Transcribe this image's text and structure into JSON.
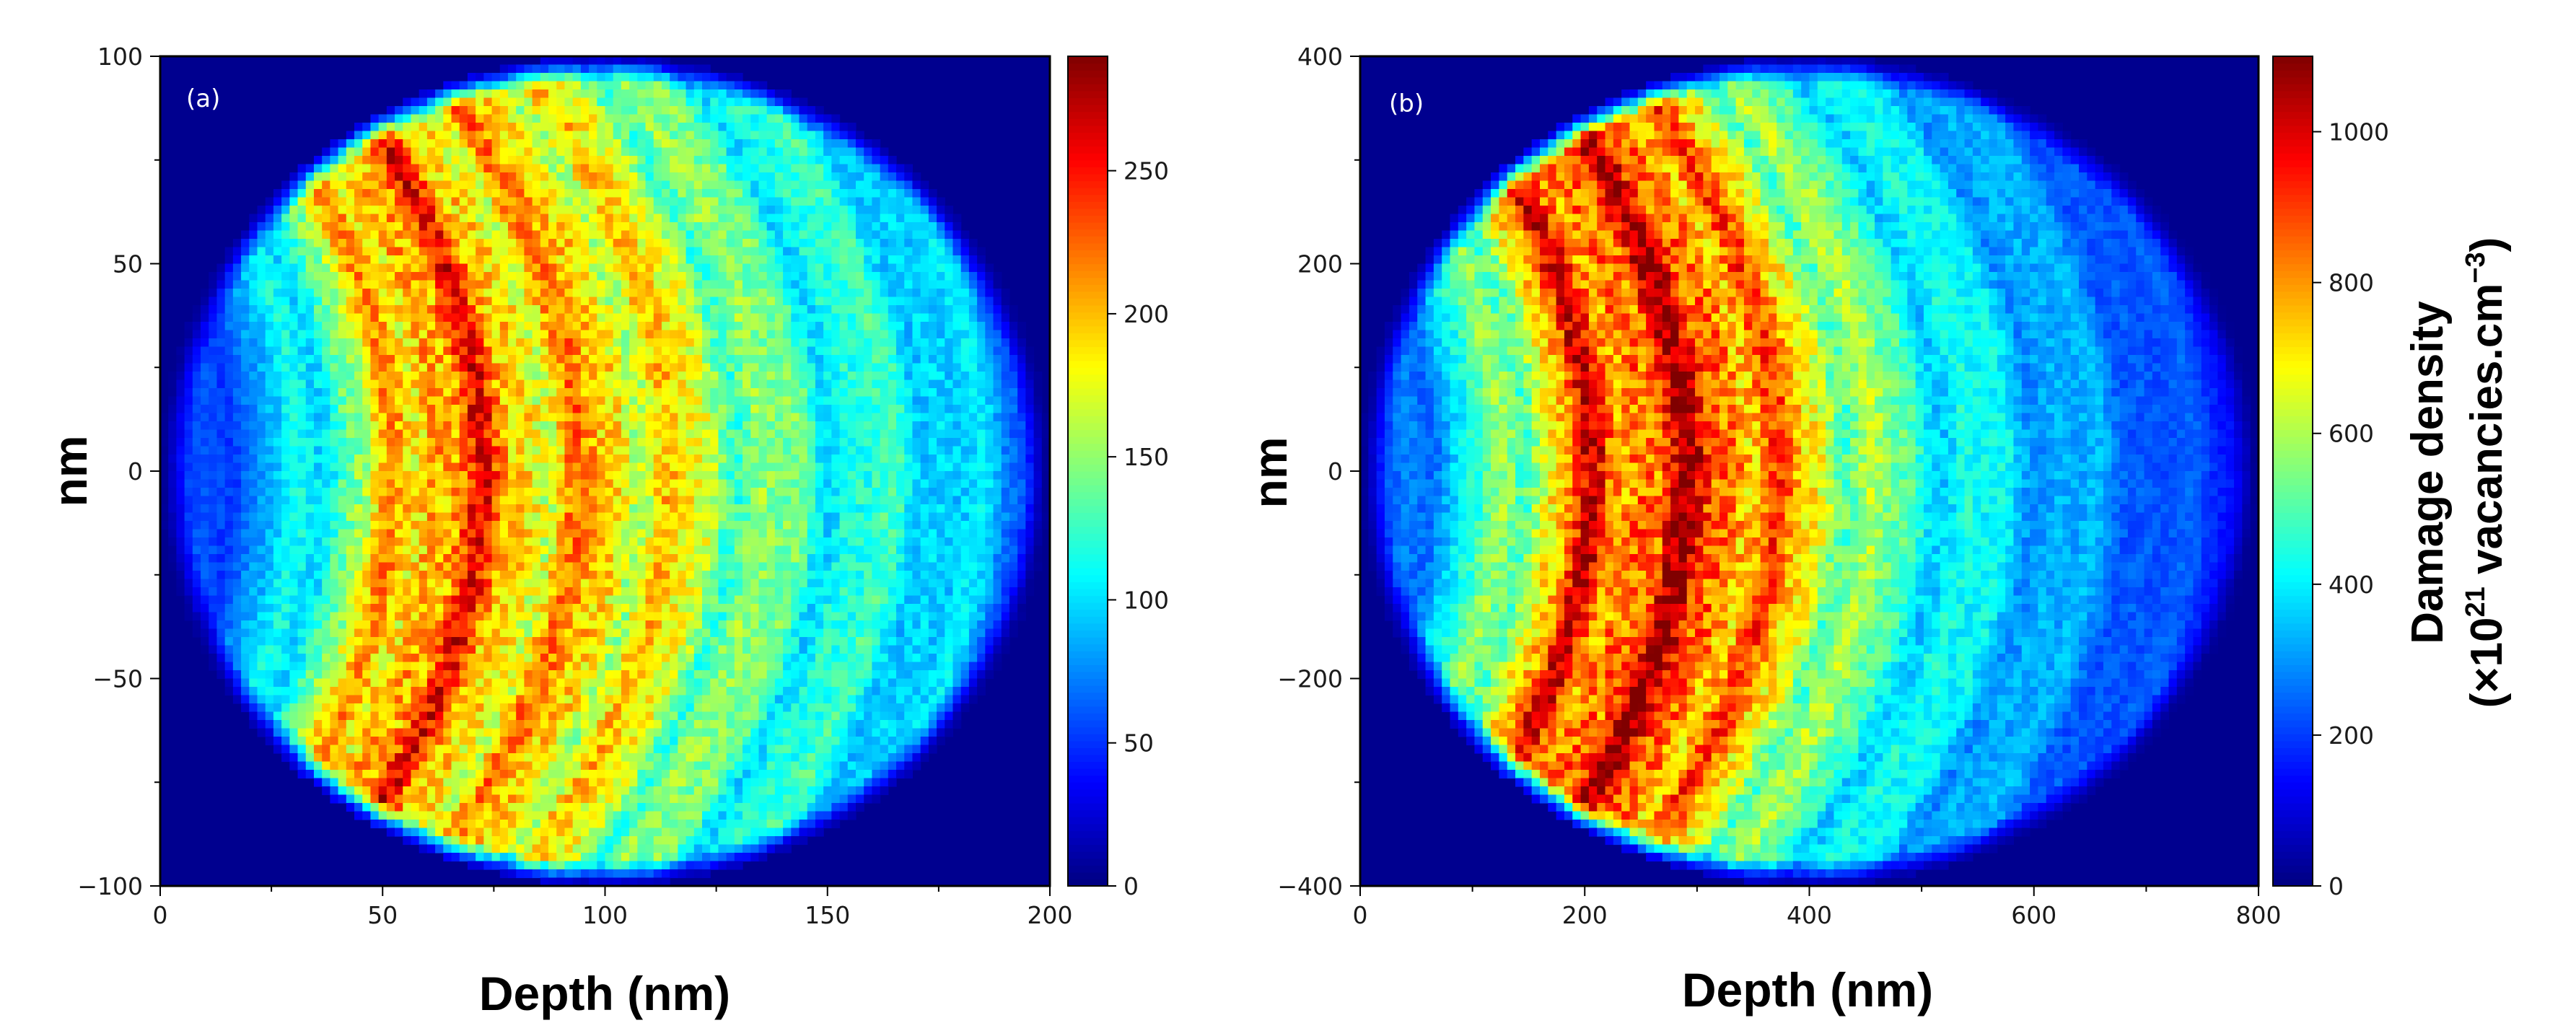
{
  "chart_data": [
    {
      "type": "heatmap",
      "panel_label": "(a)",
      "xlabel": "Depth (nm)",
      "ylabel": "nm",
      "xlim": [
        0,
        200
      ],
      "ylim": [
        -100,
        100
      ],
      "x_ticks": [
        0,
        50,
        100,
        150,
        200
      ],
      "y_ticks": [
        -100,
        -50,
        0,
        50,
        100
      ],
      "x_tick_labels": [
        "0",
        "50",
        "100",
        "150",
        "200"
      ],
      "y_tick_labels": [
        "−100",
        "−50",
        "0",
        "50",
        "100"
      ],
      "colorbar": {
        "range": [
          0,
          290
        ],
        "ticks": [
          0,
          50,
          100,
          150,
          200,
          250
        ],
        "tick_labels": [
          "0",
          "50",
          "100",
          "150",
          "200",
          "250"
        ],
        "colormap": "jet"
      },
      "description_of_field": {
        "shape": "circular cross-section of radius 100 nm centred at depth 100 nm",
        "background_value": 0,
        "profile_along_depth": [
          [
            0,
            40
          ],
          [
            20,
            70
          ],
          [
            35,
            110
          ],
          [
            50,
            175
          ],
          [
            60,
            215
          ],
          [
            70,
            225
          ],
          [
            80,
            205
          ],
          [
            90,
            190
          ],
          [
            100,
            195
          ],
          [
            110,
            185
          ],
          [
            120,
            170
          ],
          [
            130,
            150
          ],
          [
            150,
            120
          ],
          [
            170,
            110
          ],
          [
            185,
            90
          ],
          [
            200,
            50
          ]
        ],
        "max_value": 285
      }
    },
    {
      "type": "heatmap",
      "panel_label": "(b)",
      "xlabel": "Depth (nm)",
      "ylabel": "nm",
      "xlim": [
        0,
        800
      ],
      "ylim": [
        -400,
        400
      ],
      "x_ticks": [
        0,
        200,
        400,
        600,
        800
      ],
      "y_ticks": [
        -400,
        -200,
        0,
        200,
        400
      ],
      "x_tick_labels": [
        "0",
        "200",
        "400",
        "600",
        "800"
      ],
      "y_tick_labels": [
        "−400",
        "−200",
        "0",
        "200",
        "400"
      ],
      "colorbar": {
        "range": [
          0,
          1100
        ],
        "ticks": [
          0,
          200,
          400,
          600,
          800,
          1000
        ],
        "tick_labels": [
          "0",
          "200",
          "400",
          "600",
          "800",
          "1000"
        ],
        "colormap": "jet",
        "label_line1": "Damage density",
        "label_line2_prefix": "(×10",
        "label_line2_exp": "21",
        "label_line2_mid": " vacancies.cm",
        "label_line2_exp2": "−3",
        "label_line2_suffix": ")"
      },
      "description_of_field": {
        "shape": "circular cross-section of radius 400 nm centred at depth 400 nm",
        "background_value": 0,
        "profile_along_depth": [
          [
            0,
            150
          ],
          [
            80,
            350
          ],
          [
            150,
            600
          ],
          [
            200,
            860
          ],
          [
            250,
            900
          ],
          [
            300,
            930
          ],
          [
            350,
            860
          ],
          [
            400,
            700
          ],
          [
            450,
            560
          ],
          [
            500,
            450
          ],
          [
            600,
            350
          ],
          [
            700,
            250
          ],
          [
            800,
            150
          ]
        ],
        "max_value": 1080
      }
    }
  ]
}
